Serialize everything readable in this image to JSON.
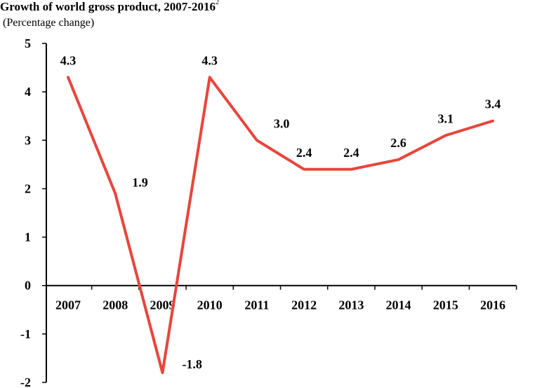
{
  "chart_data": {
    "type": "line",
    "title": "Growth of world gross product, 2007-2016",
    "title_superscript": "2",
    "subtitle": "(Percentage change)",
    "xlabel": "",
    "ylabel": "",
    "categories": [
      "2007",
      "2008",
      "2009",
      "2010",
      "2011",
      "2012",
      "2013",
      "2014",
      "2015",
      "2016"
    ],
    "series": [
      {
        "name": "World gross product growth",
        "values": [
          4.3,
          1.9,
          -1.8,
          4.3,
          3.0,
          2.4,
          2.4,
          2.6,
          3.1,
          3.4
        ],
        "labels": [
          "4.3",
          "1.9",
          "-1.8",
          "4.3",
          "3.0",
          "2.4",
          "2.4",
          "2.6",
          "3.1",
          "3.4"
        ],
        "color": "#e8453c"
      }
    ],
    "yticks": [
      -2,
      -1,
      0,
      1,
      2,
      3,
      4,
      5
    ],
    "ylim": [
      -2,
      5
    ],
    "grid": false,
    "legend": "none"
  }
}
